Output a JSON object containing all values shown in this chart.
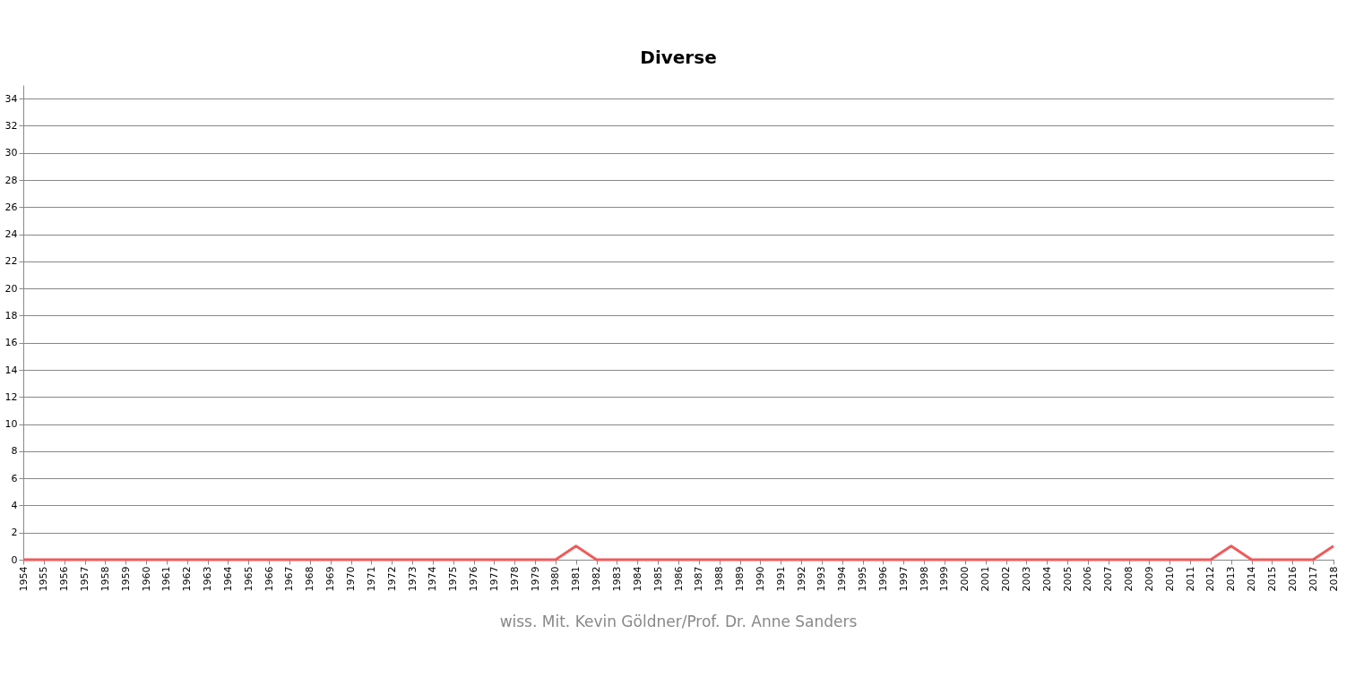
{
  "chart_data": {
    "type": "line",
    "title": "Diverse",
    "categories": [
      "1954",
      "1955",
      "1956",
      "1957",
      "1958",
      "1959",
      "1960",
      "1961",
      "1962",
      "1963",
      "1964",
      "1965",
      "1966",
      "1967",
      "1968",
      "1969",
      "1970",
      "1971",
      "1972",
      "1973",
      "1974",
      "1975",
      "1976",
      "1977",
      "1978",
      "1979",
      "1980",
      "1981",
      "1982",
      "1983",
      "1984",
      "1985",
      "1986",
      "1987",
      "1988",
      "1989",
      "1990",
      "1991",
      "1992",
      "1993",
      "1994",
      "1995",
      "1996",
      "1997",
      "1998",
      "1999",
      "2000",
      "2001",
      "2002",
      "2003",
      "2004",
      "2005",
      "2006",
      "2007",
      "2008",
      "2009",
      "2010",
      "2011",
      "2012",
      "2013",
      "2014",
      "2015",
      "2016",
      "2017",
      "2018"
    ],
    "series": [
      {
        "color": "#f05a5a",
        "values": [
          0,
          0,
          0,
          0,
          0,
          0,
          0,
          0,
          0,
          0,
          0,
          0,
          0,
          0,
          0,
          0,
          0,
          0,
          0,
          0,
          0,
          0,
          0,
          0,
          0,
          0,
          0,
          1,
          0,
          0,
          0,
          0,
          0,
          0,
          0,
          0,
          0,
          0,
          0,
          0,
          0,
          0,
          0,
          0,
          0,
          0,
          0,
          0,
          0,
          0,
          0,
          0,
          0,
          0,
          0,
          0,
          0,
          0,
          0,
          1,
          0,
          0,
          0,
          0,
          1
        ]
      }
    ],
    "ylim": [
      0,
      35
    ],
    "yticks": [
      0,
      2,
      4,
      6,
      8,
      10,
      12,
      14,
      16,
      18,
      20,
      22,
      24,
      26,
      28,
      30,
      32,
      34
    ],
    "grid": "y",
    "marker": "none",
    "line_style": "solid",
    "annotations": [
      "wiss. Mit. Kevin Göldner/Prof.  Dr. Anne Sanders"
    ]
  }
}
